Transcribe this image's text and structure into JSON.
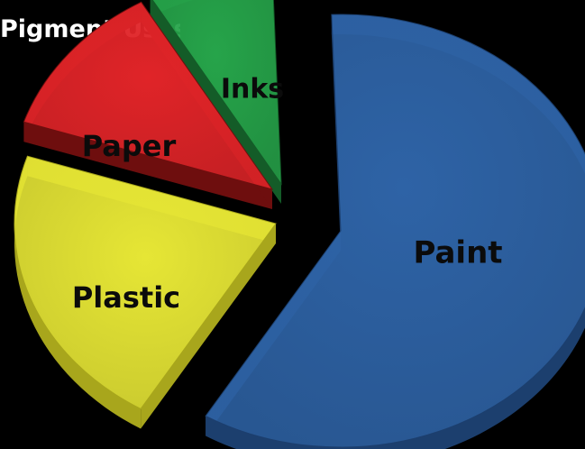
{
  "chart_data": {
    "type": "pie",
    "style": "3d-exploded",
    "title": "Pigment Uses",
    "labels": [
      "Paint",
      "Plastic",
      "Paper",
      "Inks"
    ],
    "values": [
      59.2,
      21.4,
      11.6,
      7.8
    ],
    "unit": "percent",
    "colors": [
      "#2e63a6",
      "#e6e635",
      "#e02428",
      "#26a44a"
    ],
    "side_colors": [
      "#1c3f6e",
      "#a8a61c",
      "#6e0e0e",
      "#145c28"
    ],
    "legend": "none",
    "grid": false
  }
}
